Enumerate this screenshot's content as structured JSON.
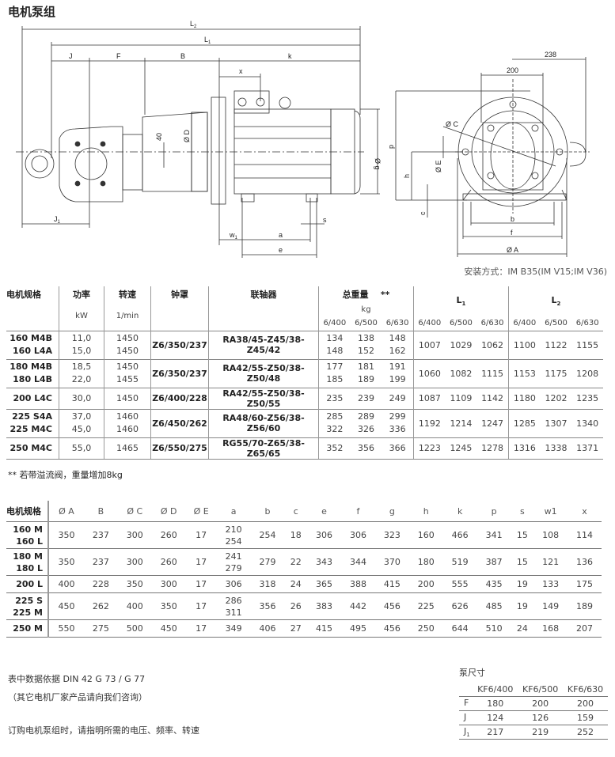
{
  "title": "电机泵组",
  "drawing": {
    "labels": {
      "L2": "L",
      "L2_sub": "2",
      "L1": "L",
      "L1_sub": "1",
      "J": "J",
      "F": "F",
      "B": "B",
      "k": "k",
      "x": "x",
      "D": "Ø D",
      "dim40": "40",
      "g": "Ø g",
      "p": "p",
      "h": "h",
      "J1": "J",
      "J1_sub": "1",
      "w1": "w",
      "w1_sub": "1",
      "a": "a",
      "e": "e",
      "s": "s",
      "r238": "238",
      "r200": "200",
      "C": "Ø C",
      "E": "Ø E",
      "c": "c",
      "b": "b",
      "f": "f",
      "A": "Ø A"
    },
    "mounting": "安装方式：IM B35(IM V15;IM V36)"
  },
  "table1": {
    "headers": [
      "电机规格",
      "功率",
      "转速",
      "钟罩",
      "联轴器",
      "总重量",
      "L",
      "L"
    ],
    "weight_mark": "**",
    "L_subs": [
      "1",
      "2"
    ],
    "units": {
      "power": "kW",
      "speed": "1/min",
      "weight": "kg"
    },
    "sub_cols": [
      "6/400",
      "6/500",
      "6/630"
    ],
    "rows": [
      {
        "models": [
          "160 M4B",
          "160 L4A"
        ],
        "power": [
          "11,0",
          "15,0"
        ],
        "speed": [
          "1450",
          "1450"
        ],
        "bell": "Z6/350/237",
        "coupling": "RA38/45-Z45/38-Z45/42",
        "weight": [
          [
            "134",
            "138",
            "148"
          ],
          [
            "148",
            "152",
            "162"
          ]
        ],
        "L1": [
          "1007",
          "1029",
          "1062"
        ],
        "L2": [
          "1100",
          "1122",
          "1155"
        ]
      },
      {
        "models": [
          "180 M4B",
          "180 L4B"
        ],
        "power": [
          "18,5",
          "22,0"
        ],
        "speed": [
          "1450",
          "1455"
        ],
        "bell": "Z6/350/237",
        "coupling": "RA42/55-Z50/38-Z50/48",
        "weight": [
          [
            "177",
            "181",
            "191"
          ],
          [
            "185",
            "189",
            "199"
          ]
        ],
        "L1": [
          "1060",
          "1082",
          "1115"
        ],
        "L2": [
          "1153",
          "1175",
          "1208"
        ]
      },
      {
        "models": [
          "200 L4C"
        ],
        "power": [
          "30,0"
        ],
        "speed": [
          "1450"
        ],
        "bell": "Z6/400/228",
        "coupling": "RA42/55-Z50/38-Z50/55",
        "weight": [
          [
            "235",
            "239",
            "249"
          ]
        ],
        "L1": [
          "1087",
          "1109",
          "1142"
        ],
        "L2": [
          "1180",
          "1202",
          "1235"
        ]
      },
      {
        "models": [
          "225 S4A",
          "225 M4C"
        ],
        "power": [
          "37,0",
          "45,0"
        ],
        "speed": [
          "1460",
          "1460"
        ],
        "bell": "Z6/450/262",
        "coupling": "RA48/60-Z56/38-Z56/60",
        "weight": [
          [
            "285",
            "289",
            "299"
          ],
          [
            "322",
            "326",
            "336"
          ]
        ],
        "L1": [
          "1192",
          "1214",
          "1247"
        ],
        "L2": [
          "1285",
          "1307",
          "1340"
        ]
      },
      {
        "models": [
          "250 M4C"
        ],
        "power": [
          "55,0"
        ],
        "speed": [
          "1465"
        ],
        "bell": "Z6/550/275",
        "coupling": "RG55/70-Z65/38-Z65/65",
        "weight": [
          [
            "352",
            "356",
            "366"
          ]
        ],
        "L1": [
          "1223",
          "1245",
          "1278"
        ],
        "L2": [
          "1316",
          "1338",
          "1371"
        ]
      }
    ],
    "footnote_mark": "**",
    "footnote": " 若带溢流阀，重量增加8kg"
  },
  "table2": {
    "headers": [
      "电机规格",
      "Ø A",
      "B",
      "Ø C",
      "Ø D",
      "Ø E",
      "a",
      "b",
      "c",
      "e",
      "f",
      "g",
      "h",
      "k",
      "p",
      "s",
      "w1",
      "x"
    ],
    "rows": [
      {
        "models": [
          "160 M",
          "160 L"
        ],
        "values": [
          "350",
          "237",
          "300",
          "260",
          "17",
          [
            "210",
            "254"
          ],
          "254",
          "18",
          "306",
          "306",
          "323",
          "160",
          "466",
          "341",
          "15",
          "108",
          "114"
        ]
      },
      {
        "models": [
          "180 M",
          "180 L"
        ],
        "values": [
          "350",
          "237",
          "300",
          "260",
          "17",
          [
            "241",
            "279"
          ],
          "279",
          "22",
          "343",
          "344",
          "370",
          "180",
          "519",
          "387",
          "15",
          "121",
          "136"
        ]
      },
      {
        "models": [
          "200 L"
        ],
        "values": [
          "400",
          "228",
          "350",
          "300",
          "17",
          "306",
          "318",
          "24",
          "365",
          "388",
          "415",
          "200",
          "555",
          "435",
          "19",
          "133",
          "175"
        ]
      },
      {
        "models": [
          "225 S",
          "225 M"
        ],
        "values": [
          "450",
          "262",
          "400",
          "350",
          "17",
          [
            "286",
            "311"
          ],
          "356",
          "26",
          "383",
          "442",
          "456",
          "225",
          "626",
          "485",
          "19",
          "149",
          "189"
        ]
      },
      {
        "models": [
          "250 M"
        ],
        "values": [
          "550",
          "275",
          "500",
          "450",
          "17",
          "349",
          "406",
          "27",
          "415",
          "495",
          "456",
          "250",
          "644",
          "510",
          "24",
          "168",
          "207"
        ]
      }
    ]
  },
  "notes": [
    "表中数据依据 DIN 42 G 73 / G 77",
    "（其它电机厂家产品请向我们咨询）",
    "订购电机泵组时，请指明所需的电压、频率、转速"
  ],
  "pump_table": {
    "title": "泵尺寸",
    "headers": [
      "",
      "KF6/400",
      "KF6/500",
      "KF6/630"
    ],
    "rows": [
      {
        "label": "F",
        "sub": "",
        "values": [
          "180",
          "200",
          "200"
        ]
      },
      {
        "label": "J",
        "sub": "",
        "values": [
          "124",
          "126",
          "159"
        ]
      },
      {
        "label": "J",
        "sub": "1",
        "values": [
          "217",
          "219",
          "252"
        ]
      }
    ]
  }
}
